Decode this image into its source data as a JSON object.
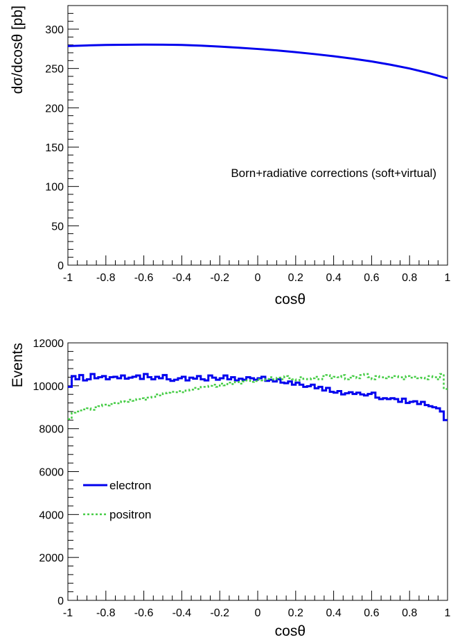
{
  "colors": {
    "electron": "#0000ee",
    "positron": "#44cc44",
    "axis": "#000000"
  },
  "chart_data": [
    {
      "type": "line",
      "xlabel": "cosθ",
      "ylabel": "dσ/dcosθ [pb]",
      "xlim": [
        -1,
        1
      ],
      "ylim": [
        0,
        330
      ],
      "xticks": [
        -1,
        -0.8,
        -0.6,
        -0.4,
        -0.2,
        0,
        0.2,
        0.4,
        0.6,
        0.8,
        1
      ],
      "xtick_labels": [
        "-1",
        "-0.8",
        "-0.6",
        "-0.4",
        "-0.2",
        "0",
        "0.2",
        "0.4",
        "0.6",
        "0.8",
        "1"
      ],
      "yticks": [
        0,
        50,
        100,
        150,
        200,
        250,
        300
      ],
      "ytick_labels": [
        "0",
        "50",
        "100",
        "150",
        "200",
        "250",
        "300"
      ],
      "annotation": "Born+radiative corrections (soft+virtual)",
      "grid": false,
      "series": [
        {
          "color_key": "electron",
          "x": [
            -1,
            -0.9,
            -0.8,
            -0.7,
            -0.6,
            -0.5,
            -0.4,
            -0.3,
            -0.2,
            -0.1,
            0,
            0.1,
            0.2,
            0.3,
            0.4,
            0.5,
            0.6,
            0.7,
            0.8,
            0.9,
            1
          ],
          "y": [
            278.5,
            279.3,
            279.9,
            280.2,
            280.4,
            280.3,
            279.9,
            279.0,
            277.8,
            276.4,
            274.8,
            273.0,
            270.8,
            268.3,
            265.6,
            262.5,
            259.0,
            254.8,
            250.0,
            244.2,
            237.5
          ]
        }
      ]
    },
    {
      "type": "line",
      "xlabel": "cosθ",
      "ylabel": "Events",
      "xlim": [
        -1,
        1
      ],
      "ylim": [
        0,
        12000
      ],
      "xticks": [
        -1,
        -0.8,
        -0.6,
        -0.4,
        -0.2,
        0,
        0.2,
        0.4,
        0.6,
        0.8,
        1
      ],
      "xtick_labels": [
        "-1",
        "-0.8",
        "-0.6",
        "-0.4",
        "-0.2",
        "0",
        "0.2",
        "0.4",
        "0.6",
        "0.8",
        "1"
      ],
      "yticks": [
        0,
        2000,
        4000,
        6000,
        8000,
        10000,
        12000
      ],
      "ytick_labels": [
        "0",
        "2000",
        "4000",
        "6000",
        "8000",
        "10000",
        "12000"
      ],
      "legend_position": "center-left",
      "grid": false,
      "series": [
        {
          "name": "electron",
          "color_key": "electron",
          "style": "solid-step",
          "bin_edges_range": [
            -1,
            1
          ],
          "values": [
            9950,
            10450,
            10300,
            10500,
            10250,
            10300,
            10550,
            10350,
            10400,
            10450,
            10300,
            10400,
            10420,
            10350,
            10480,
            10330,
            10380,
            10420,
            10480,
            10320,
            10550,
            10400,
            10300,
            10420,
            10350,
            10500,
            10300,
            10230,
            10280,
            10350,
            10420,
            10250,
            10380,
            10330,
            10450,
            10300,
            10250,
            10480,
            10380,
            10280,
            10350,
            10480,
            10300,
            10400,
            10250,
            10330,
            10280,
            10400,
            10350,
            10280,
            10350,
            10420,
            10230,
            10280,
            10200,
            10300,
            10150,
            10120,
            10200,
            10050,
            10150,
            10050,
            9950,
            9980,
            10050,
            9880,
            9950,
            9780,
            9900,
            9720,
            9680,
            9750,
            9600,
            9650,
            9700,
            9620,
            9680,
            9600,
            9550,
            9620,
            9680,
            9450,
            9380,
            9420,
            9380,
            9420,
            9380,
            9250,
            9400,
            9200,
            9250,
            9280,
            9150,
            9250,
            9100,
            9050,
            9000,
            8950,
            8800,
            8400
          ]
        },
        {
          "name": "positron",
          "color_key": "positron",
          "style": "dashed-step",
          "bin_edges_range": [
            -1,
            1
          ],
          "values": [
            8450,
            8750,
            8800,
            8850,
            8900,
            8950,
            8880,
            9000,
            9050,
            9120,
            9080,
            9150,
            9200,
            9180,
            9280,
            9250,
            9350,
            9300,
            9380,
            9420,
            9350,
            9450,
            9480,
            9600,
            9550,
            9650,
            9680,
            9720,
            9700,
            9750,
            9700,
            9780,
            9820,
            9900,
            9850,
            9950,
            9950,
            10000,
            10050,
            9950,
            10100,
            10020,
            10150,
            10080,
            10180,
            10100,
            10200,
            10250,
            10180,
            10220,
            10300,
            10250,
            10320,
            10400,
            10300,
            10380,
            10300,
            10450,
            10350,
            10300,
            10250,
            10400,
            10320,
            10300,
            10350,
            10420,
            10300,
            10450,
            10500,
            10350,
            10420,
            10400,
            10500,
            10300,
            10380,
            10450,
            10350,
            10500,
            10550,
            10400,
            10300,
            10450,
            10400,
            10350,
            10420,
            10380,
            10450,
            10400,
            10300,
            10450,
            10380,
            10420,
            10350,
            10380,
            10300,
            10450,
            10400,
            10300,
            10550,
            9850
          ]
        }
      ]
    }
  ]
}
